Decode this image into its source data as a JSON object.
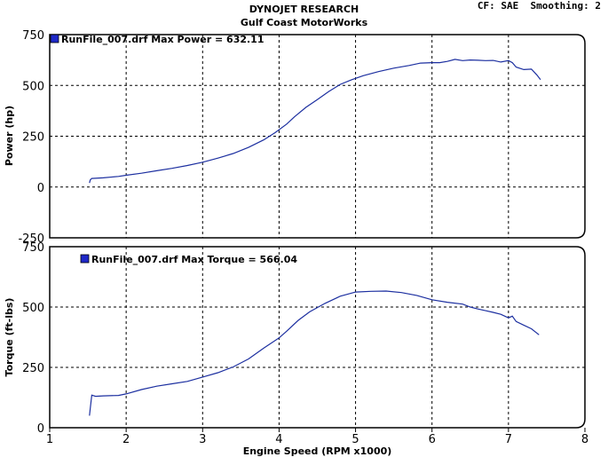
{
  "header": {
    "title": "DYNOJET RESEARCH",
    "subtitle": "Gulf Coast MotorWorks",
    "cf_label": "CF: SAE",
    "smoothing_label": "Smoothing: 2"
  },
  "colors": {
    "series": "#1c2fa0",
    "legend_box": "#1e28c8"
  },
  "chart_data": [
    {
      "type": "line",
      "ylabel": "Power (hp)",
      "xlabel": "",
      "ylim": [
        -250,
        750
      ],
      "yticks": [
        "750",
        "500",
        "250",
        "0",
        "-250"
      ],
      "xlim": [
        1,
        8
      ],
      "grid": true,
      "legend": "RunFile_007.drf Max Power = 632.11",
      "legend_placement": "top-left",
      "series": [
        {
          "points": [
            [
              1.52,
              20
            ],
            [
              1.53,
              35
            ],
            [
              1.55,
              42
            ],
            [
              1.7,
              45
            ],
            [
              1.9,
              52
            ],
            [
              2.0,
              58
            ],
            [
              2.2,
              68
            ],
            [
              2.4,
              80
            ],
            [
              2.6,
              92
            ],
            [
              2.8,
              106
            ],
            [
              3.0,
              122
            ],
            [
              3.2,
              142
            ],
            [
              3.4,
              165
            ],
            [
              3.6,
              195
            ],
            [
              3.8,
              232
            ],
            [
              3.95,
              268
            ],
            [
              4.1,
              310
            ],
            [
              4.2,
              345
            ],
            [
              4.35,
              392
            ],
            [
              4.5,
              430
            ],
            [
              4.65,
              470
            ],
            [
              4.8,
              505
            ],
            [
              4.95,
              528
            ],
            [
              5.1,
              548
            ],
            [
              5.3,
              568
            ],
            [
              5.5,
              585
            ],
            [
              5.7,
              598
            ],
            [
              5.85,
              610
            ],
            [
              6.0,
              612
            ],
            [
              6.1,
              612
            ],
            [
              6.2,
              618
            ],
            [
              6.3,
              628
            ],
            [
              6.4,
              622
            ],
            [
              6.5,
              625
            ],
            [
              6.6,
              624
            ],
            [
              6.7,
              622
            ],
            [
              6.8,
              623
            ],
            [
              6.9,
              615
            ],
            [
              7.0,
              622
            ],
            [
              7.05,
              612
            ],
            [
              7.1,
              590
            ],
            [
              7.2,
              578
            ],
            [
              7.3,
              580
            ],
            [
              7.37,
              552
            ],
            [
              7.42,
              528
            ]
          ]
        }
      ]
    },
    {
      "type": "line",
      "ylabel": "Torque (ft-lbs)",
      "xlabel": "Engine Speed (RPM x1000)",
      "ylim": [
        0,
        750
      ],
      "yticks": [
        "750",
        "500",
        "250",
        "0"
      ],
      "xlim": [
        1,
        8
      ],
      "xticks": [
        "1",
        "2",
        "3",
        "4",
        "5",
        "6",
        "7",
        "8"
      ],
      "grid": true,
      "legend": "RunFile_007.drf Max Torque = 566.04",
      "legend_placement": "top-left",
      "series": [
        {
          "points": [
            [
              1.52,
              50
            ],
            [
              1.53,
              80
            ],
            [
              1.55,
              135
            ],
            [
              1.6,
              130
            ],
            [
              1.7,
              132
            ],
            [
              1.9,
              134
            ],
            [
              2.0,
              140
            ],
            [
              2.2,
              158
            ],
            [
              2.4,
              172
            ],
            [
              2.6,
              182
            ],
            [
              2.8,
              192
            ],
            [
              3.0,
              210
            ],
            [
              3.2,
              228
            ],
            [
              3.4,
              252
            ],
            [
              3.6,
              285
            ],
            [
              3.8,
              330
            ],
            [
              4.0,
              372
            ],
            [
              4.1,
              400
            ],
            [
              4.25,
              445
            ],
            [
              4.4,
              480
            ],
            [
              4.6,
              515
            ],
            [
              4.8,
              545
            ],
            [
              5.0,
              562
            ],
            [
              5.2,
              565
            ],
            [
              5.4,
              566
            ],
            [
              5.6,
              560
            ],
            [
              5.8,
              548
            ],
            [
              6.0,
              530
            ],
            [
              6.2,
              520
            ],
            [
              6.4,
              512
            ],
            [
              6.5,
              500
            ],
            [
              6.6,
              492
            ],
            [
              6.7,
              485
            ],
            [
              6.8,
              478
            ],
            [
              6.9,
              470
            ],
            [
              7.0,
              455
            ],
            [
              7.05,
              462
            ],
            [
              7.1,
              440
            ],
            [
              7.2,
              425
            ],
            [
              7.3,
              410
            ],
            [
              7.4,
              385
            ]
          ]
        }
      ]
    }
  ]
}
